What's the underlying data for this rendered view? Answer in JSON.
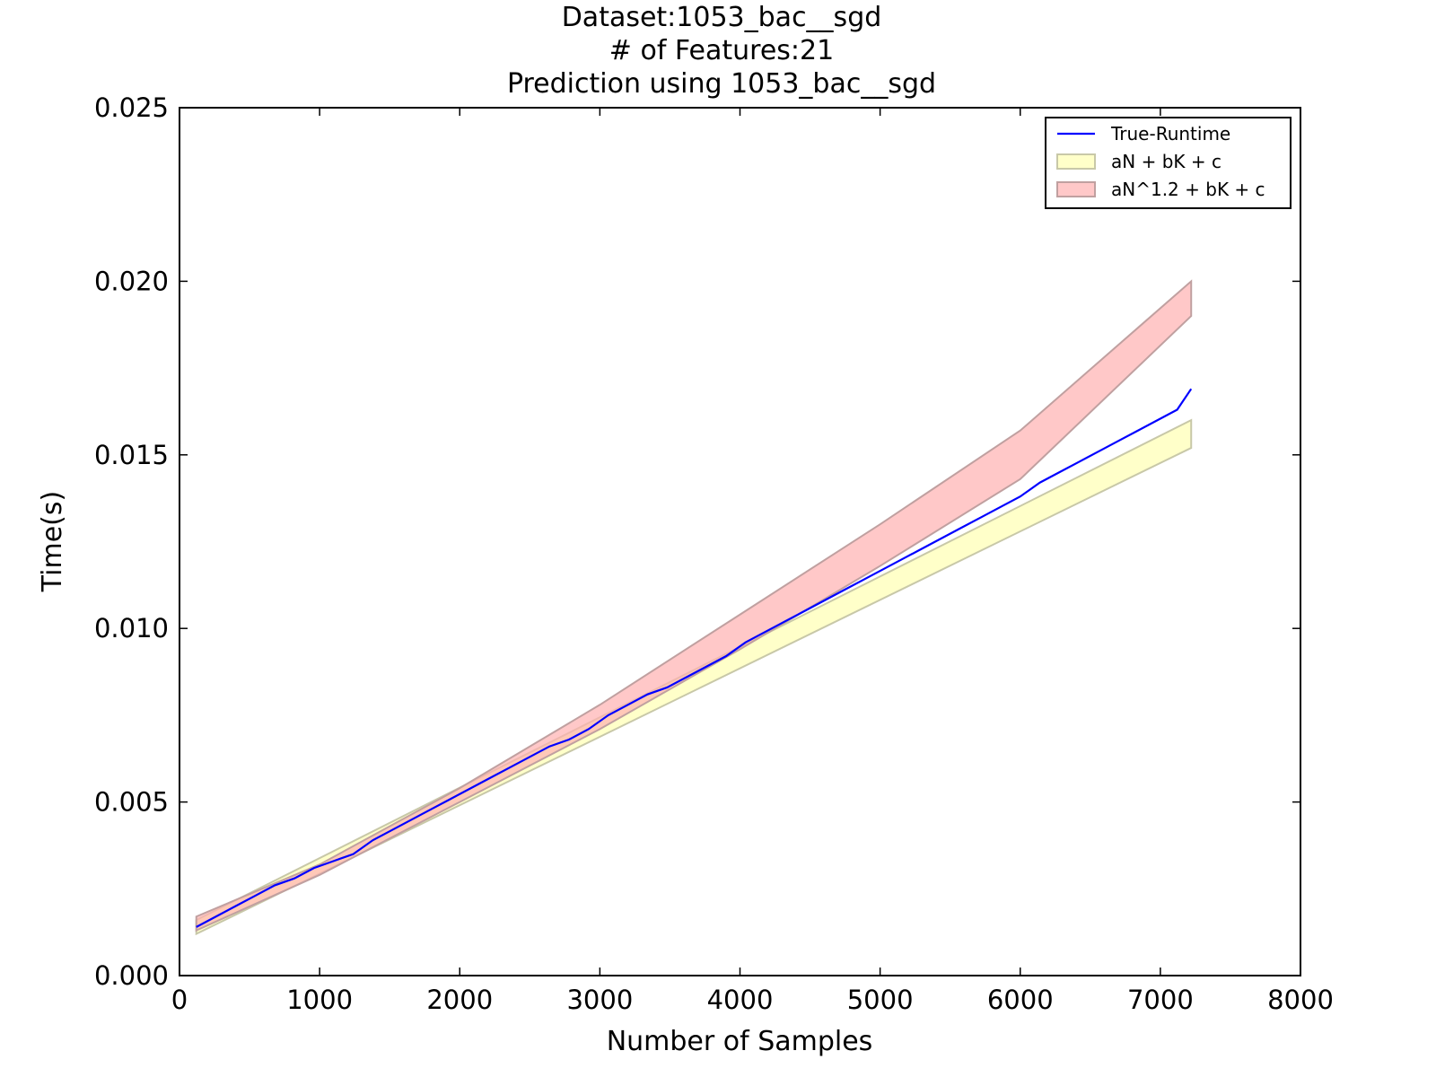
{
  "chart_data": {
    "type": "line",
    "title_lines": [
      "Dataset:1053_bac__sgd",
      "# of Features:21",
      "Prediction using 1053_bac__sgd"
    ],
    "xlabel": "Number of Samples",
    "ylabel": "Time(s)",
    "xlim": [
      0,
      8000
    ],
    "ylim": [
      0,
      0.025
    ],
    "x_ticks": [
      "0",
      "1000",
      "2000",
      "3000",
      "4000",
      "5000",
      "6000",
      "7000",
      "8000"
    ],
    "y_ticks": [
      "0.000",
      "0.005",
      "0.010",
      "0.015",
      "0.020",
      "0.025"
    ],
    "grid": false,
    "legend_position": "top-right",
    "series": [
      {
        "name": "True-Runtime",
        "kind": "line",
        "color": "#0000ff",
        "x": [
          120,
          260,
          400,
          540,
          680,
          820,
          960,
          1100,
          1240,
          1380,
          1520,
          1660,
          1800,
          1940,
          2080,
          2220,
          2360,
          2500,
          2640,
          2780,
          2920,
          3060,
          3200,
          3340,
          3480,
          3620,
          3760,
          3900,
          4040,
          4180,
          4320,
          4460,
          4600,
          4740,
          4880,
          5020,
          5160,
          5300,
          5440,
          5580,
          5720,
          5860,
          6000,
          6140,
          6280,
          6420,
          6560,
          6700,
          6840,
          6980,
          7120,
          7220
        ],
        "y": [
          0.0014,
          0.0017,
          0.002,
          0.0023,
          0.0026,
          0.0028,
          0.0031,
          0.0033,
          0.0035,
          0.0039,
          0.0042,
          0.0045,
          0.0048,
          0.0051,
          0.0054,
          0.0057,
          0.006,
          0.0063,
          0.0066,
          0.0068,
          0.0071,
          0.0075,
          0.0078,
          0.0081,
          0.0083,
          0.0086,
          0.0089,
          0.0092,
          0.0096,
          0.0099,
          0.0102,
          0.0105,
          0.0108,
          0.0111,
          0.0114,
          0.0117,
          0.012,
          0.0123,
          0.0126,
          0.0129,
          0.0132,
          0.0135,
          0.0138,
          0.0142,
          0.0145,
          0.0148,
          0.0151,
          0.0154,
          0.0157,
          0.016,
          0.0163,
          0.0169
        ]
      },
      {
        "name": "aN + bK + c",
        "kind": "band",
        "color": "#ffffb2",
        "edge": "#c8c8a8",
        "x": [
          120,
          7220
        ],
        "lower": [
          0.0012,
          0.0152
        ],
        "upper": [
          0.0016,
          0.016
        ]
      },
      {
        "name": "aN^1.2 + bK + c",
        "kind": "band",
        "color": "#ffb0b0",
        "edge": "#c0a0a0",
        "x": [
          120,
          1000,
          2000,
          3000,
          4000,
          5000,
          6000,
          7220
        ],
        "lower": [
          0.0013,
          0.0029,
          0.005,
          0.0071,
          0.0094,
          0.0118,
          0.0143,
          0.019
        ],
        "upper": [
          0.0017,
          0.0032,
          0.0054,
          0.0078,
          0.0104,
          0.013,
          0.0157,
          0.02
        ]
      }
    ]
  }
}
